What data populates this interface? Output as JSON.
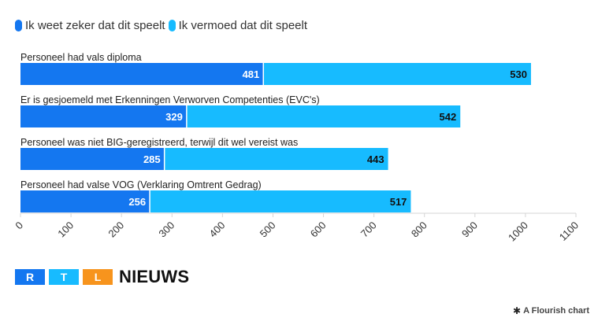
{
  "legend": {
    "items": [
      {
        "label": "Ik weet zeker dat dit speelt",
        "color": "#1477f0"
      },
      {
        "label": "Ik vermoed dat dit speelt",
        "color": "#17bbff"
      }
    ]
  },
  "chart_data": {
    "type": "bar",
    "orientation": "horizontal",
    "stacked": true,
    "categories": [
      "Personeel had vals diploma",
      "Er is gesjoemeld met Erkenningen Verworven Competenties (EVC's)",
      "Personeel was niet BIG-geregistreerd, terwijl dit wel vereist was",
      "Personeel had valse VOG (Verklaring Omtrent Gedrag)"
    ],
    "series": [
      {
        "name": "Ik weet zeker dat dit speelt",
        "values": [
          481,
          329,
          285,
          256
        ],
        "color": "#1477f0"
      },
      {
        "name": "Ik vermoed dat dit speelt",
        "values": [
          530,
          542,
          443,
          517
        ],
        "color": "#17bbff"
      }
    ],
    "xlim": [
      0,
      1100
    ],
    "xticks": [
      0,
      100,
      200,
      300,
      400,
      500,
      600,
      700,
      800,
      900,
      1000,
      1100
    ],
    "legend_position": "top-left"
  },
  "logo": {
    "blocks": [
      {
        "letter": "R",
        "color": "#1477f0"
      },
      {
        "letter": "T",
        "color": "#17bbff"
      },
      {
        "letter": "L",
        "color": "#f7941d"
      }
    ],
    "text": "NIEUWS"
  },
  "credit": {
    "icon": "flourish-asterisk-icon",
    "glyph": "✱",
    "text": "A Flourish chart"
  }
}
